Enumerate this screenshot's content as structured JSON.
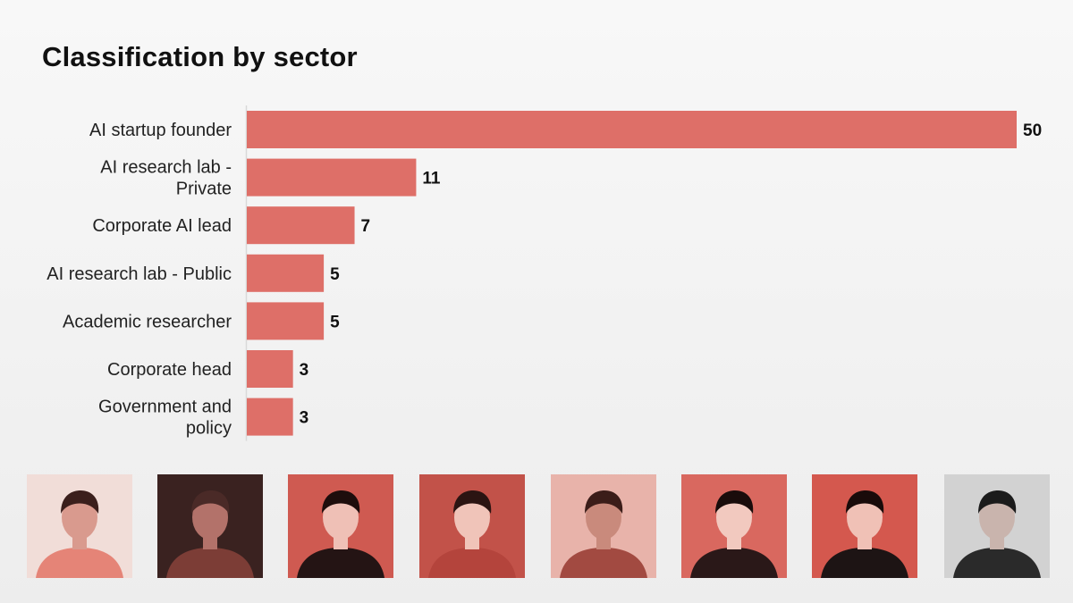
{
  "title": "Classification by sector",
  "colors": {
    "bar": "#de6f68",
    "axis": "#d9d9d9",
    "label": "#222222",
    "value": "#111111"
  },
  "chart_data": {
    "type": "bar",
    "orientation": "horizontal",
    "title": "Classification by sector",
    "xlabel": "",
    "ylabel": "",
    "grid": false,
    "xlim": [
      0,
      50
    ],
    "categories": [
      "AI startup founder",
      "AI research lab - Private",
      "Corporate AI lead",
      "AI research lab - Public",
      "Academic researcher",
      "Corporate head",
      "Government and policy"
    ],
    "category_lines": [
      [
        "AI startup founder"
      ],
      [
        "AI research lab -",
        "Private"
      ],
      [
        "Corporate AI lead"
      ],
      [
        "AI research lab - Public"
      ],
      [
        "Academic researcher"
      ],
      [
        "Corporate head"
      ],
      [
        "Government and",
        "policy"
      ]
    ],
    "values": [
      50,
      11,
      7,
      5,
      5,
      3,
      3
    ]
  },
  "photos": [
    {
      "tone": "light",
      "bg": "#f1ddd8",
      "skin": "#d99a8e",
      "hair": "#3b1f1c",
      "shirt": "#e58477",
      "icon": "person-photo-icon"
    },
    {
      "tone": "dark",
      "bg": "#3a2220",
      "skin": "#b3726a",
      "hair": "#4a2a27",
      "shirt": "#7c3d36",
      "icon": "person-photo-icon"
    },
    {
      "tone": "red",
      "bg": "#cf5a51",
      "skin": "#efc0b6",
      "hair": "#1e0d0c",
      "shirt": "#241414",
      "icon": "person-photo-icon"
    },
    {
      "tone": "red",
      "bg": "#c25249",
      "skin": "#f0c4b9",
      "hair": "#2b1412",
      "shirt": "#b4443c",
      "icon": "person-photo-icon"
    },
    {
      "tone": "light",
      "bg": "#e8b3aa",
      "skin": "#c98a7c",
      "hair": "#3b1d19",
      "shirt": "#a24a41",
      "icon": "person-photo-icon"
    },
    {
      "tone": "red",
      "bg": "#d9685f",
      "skin": "#f2c9bf",
      "hair": "#1a0c0b",
      "shirt": "#2a1818",
      "icon": "person-photo-icon"
    },
    {
      "tone": "red",
      "bg": "#d4584e",
      "skin": "#f0c1b6",
      "hair": "#1a0b0a",
      "shirt": "#1d1414",
      "icon": "person-photo-icon"
    },
    {
      "tone": "gray",
      "bg": "#d2d2d2",
      "skin": "#c9b4ad",
      "hair": "#1b1b1b",
      "shirt": "#2a2a2a",
      "icon": "person-photo-icon"
    }
  ]
}
